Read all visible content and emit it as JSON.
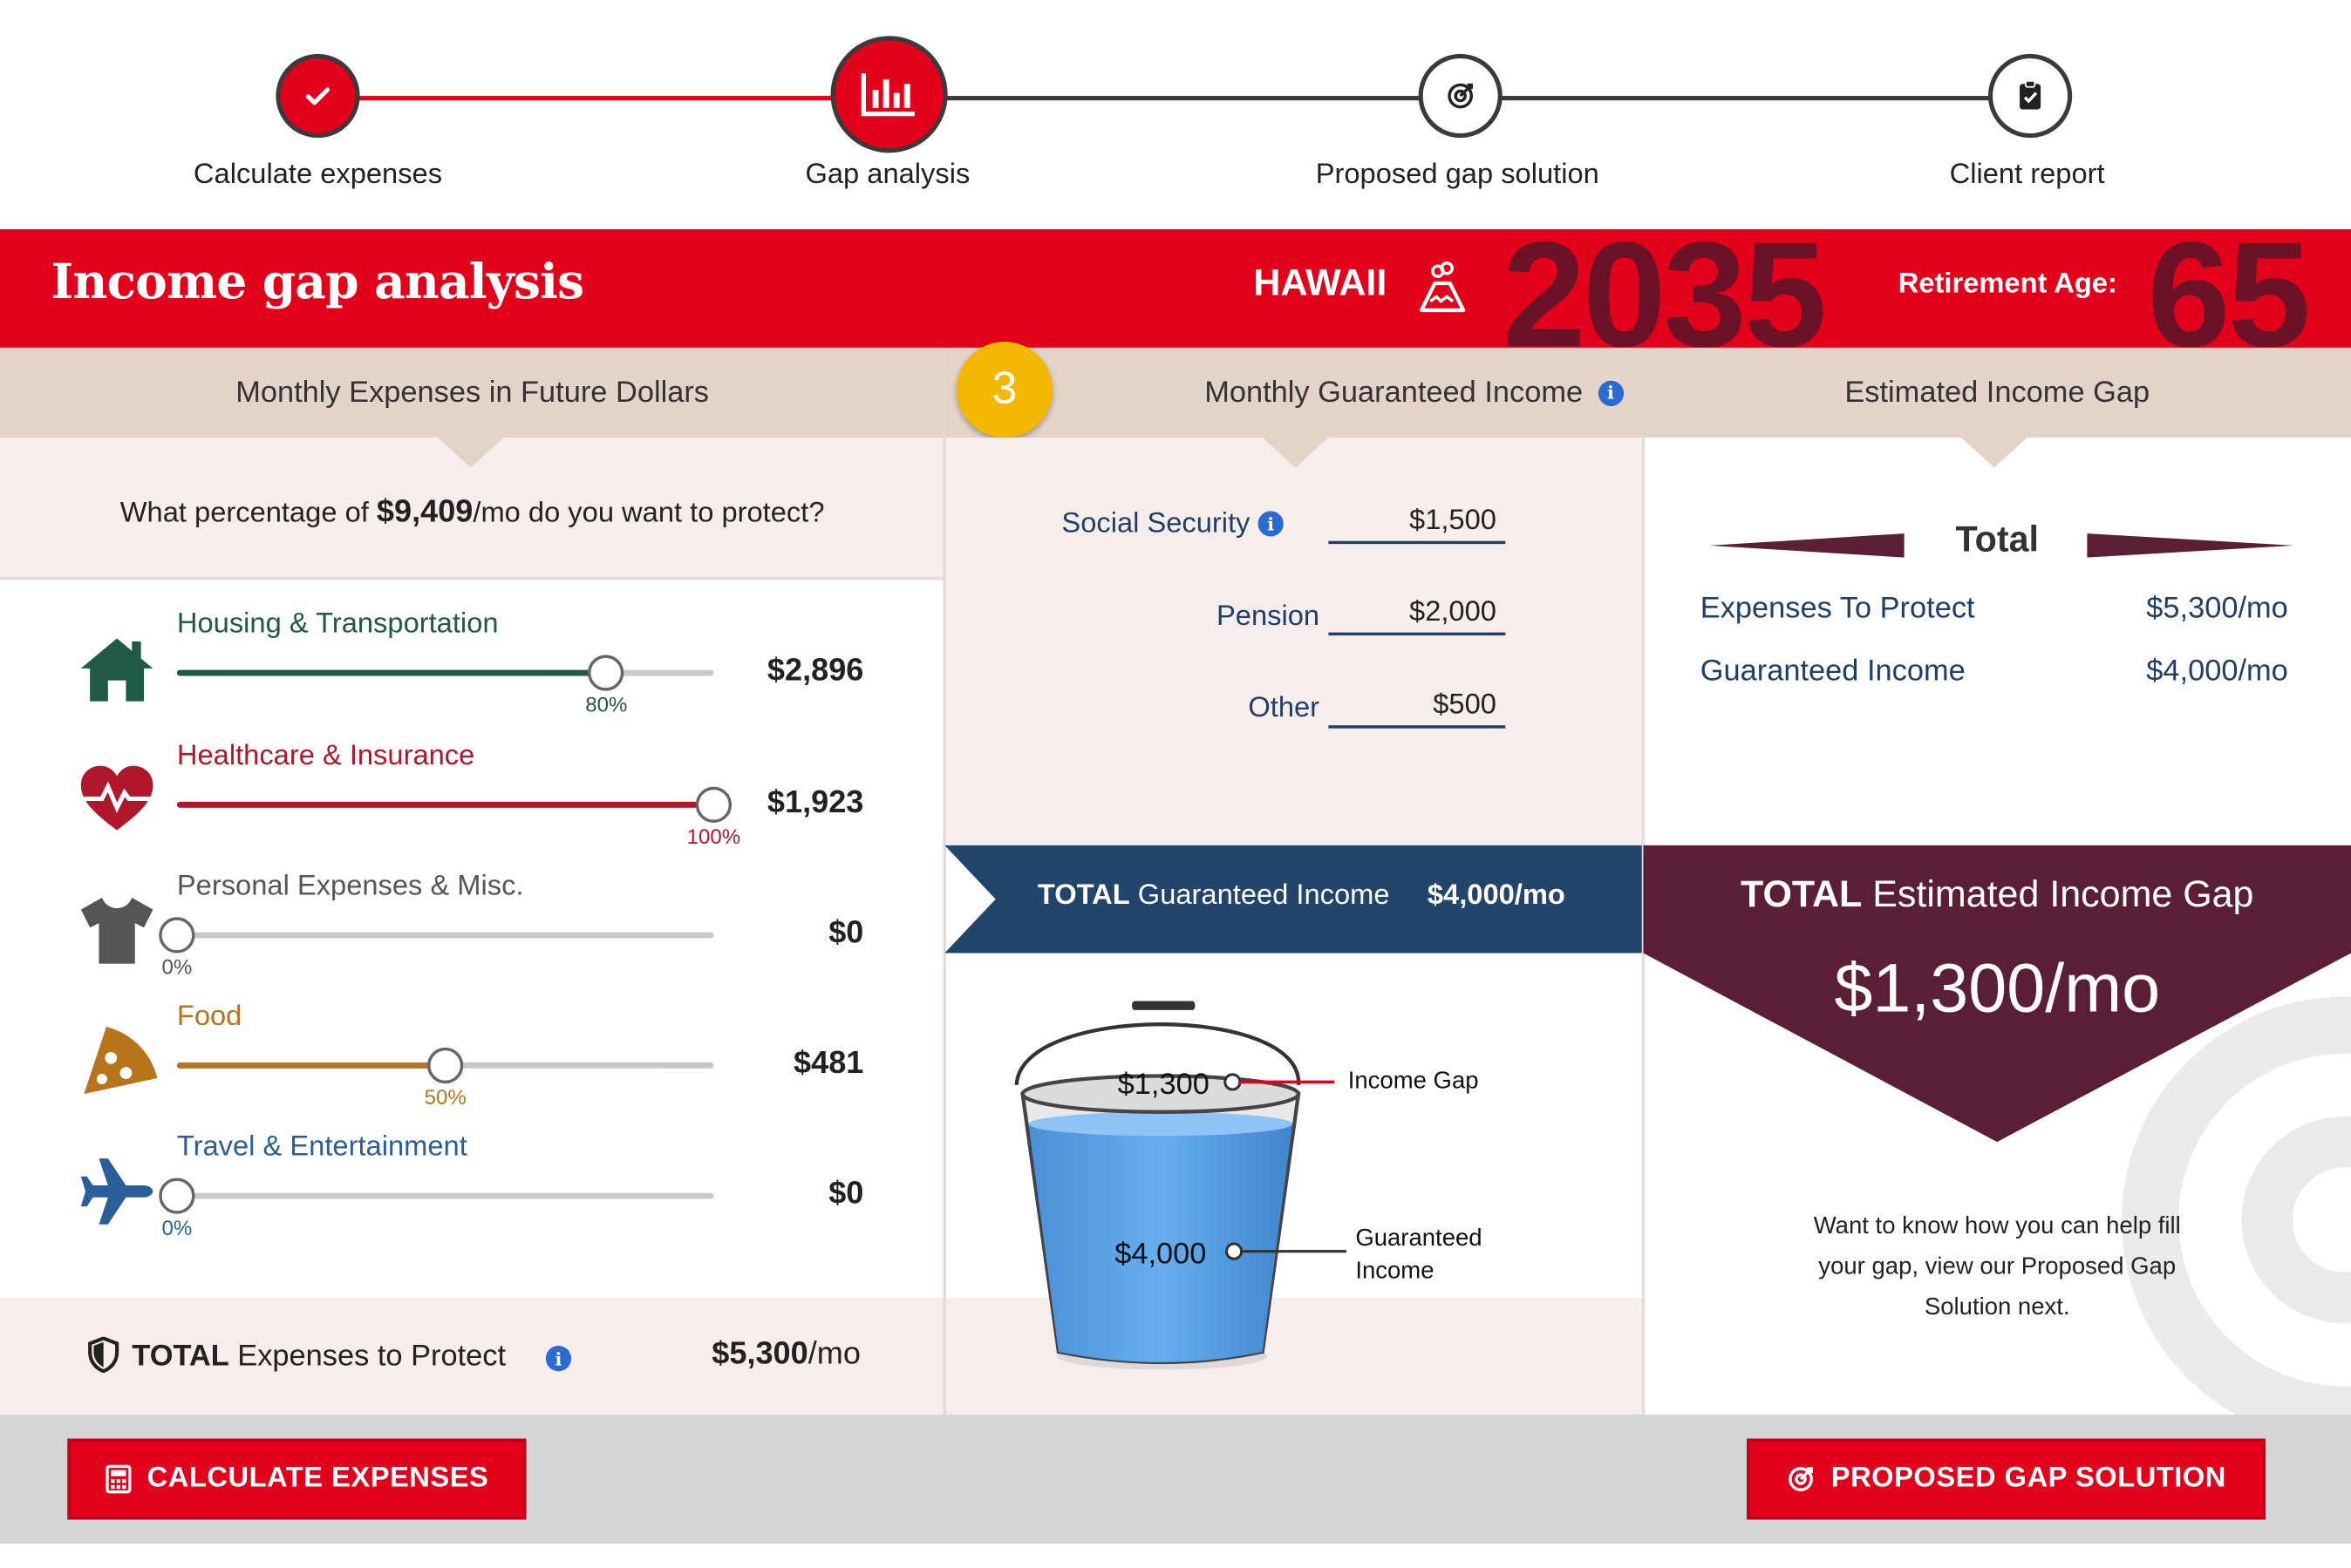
{
  "stepper": {
    "steps": [
      {
        "label": "Calculate expenses",
        "state": "complete",
        "icon": "check-icon"
      },
      {
        "label": "Gap analysis",
        "state": "active",
        "icon": "bar-chart-icon"
      },
      {
        "label": "Proposed gap solution",
        "state": "pending",
        "icon": "target-icon"
      },
      {
        "label": "Client report",
        "state": "pending",
        "icon": "clipboard-icon"
      }
    ]
  },
  "header": {
    "title": "Income gap analysis",
    "state": "HAWAII",
    "state_icon": "volcano-icon",
    "year": "2035",
    "retirement_age_label": "Retirement Age:",
    "retirement_age": "65"
  },
  "columns": {
    "expenses": "Monthly Expenses in Future Dollars",
    "income": "Monthly Guaranteed Income",
    "gap": "Estimated Income Gap",
    "step_badge": "3"
  },
  "expenses": {
    "question_prefix": "What percentage of ",
    "question_amount": "$9,409",
    "question_suffix": "/mo do you want to protect?",
    "items": [
      {
        "label": "Housing & Transportation",
        "percent": 80,
        "percent_label": "80%",
        "amount": "$2,896",
        "color": "#1e5a44",
        "icon": "house-icon"
      },
      {
        "label": "Healthcare & Insurance",
        "percent": 100,
        "percent_label": "100%",
        "amount": "$1,923",
        "color": "#b0172a",
        "icon": "heart-pulse-icon"
      },
      {
        "label": "Personal Expenses & Misc.",
        "percent": 0,
        "percent_label": "0%",
        "amount": "$0",
        "color": "#555555",
        "icon": "shirt-icon"
      },
      {
        "label": "Food",
        "percent": 50,
        "percent_label": "50%",
        "amount": "$481",
        "color": "#b8741a",
        "icon": "pizza-icon"
      },
      {
        "label": "Travel & Entertainment",
        "percent": 0,
        "percent_label": "0%",
        "amount": "$0",
        "color": "#2a5e9a",
        "icon": "airplane-icon"
      }
    ],
    "total_label_bold": "TOTAL",
    "total_label": " Expenses to Protect",
    "total_amount": "$5,300",
    "total_unit": "/mo"
  },
  "income": {
    "fields": [
      {
        "label": "Social Security",
        "value": "$1,500",
        "has_info": true
      },
      {
        "label": "Pension",
        "value": "$2,000",
        "has_info": false
      },
      {
        "label": "Other",
        "value": "$500",
        "has_info": false
      }
    ],
    "total_bold": "TOTAL",
    "total_label": " Guaranteed Income",
    "total_value": "$4,000/mo",
    "bucket_gap_value": "$1,300",
    "bucket_gap_label": "Income Gap",
    "bucket_income_value": "$4,000",
    "bucket_income_label_1": "Guaranteed",
    "bucket_income_label_2": "Income"
  },
  "gap": {
    "total_heading": "Total",
    "rows": [
      {
        "label": "Expenses To Protect",
        "value": "$5,300/mo"
      },
      {
        "label": "Guaranteed Income",
        "value": "$4,000/mo"
      }
    ],
    "banner_bold": "TOTAL",
    "banner_label": " Estimated Income Gap",
    "banner_value": "$1,300/mo",
    "note_1": "Want to know how you can help fill",
    "note_2": "your gap, view our Proposed Gap",
    "note_3": "Solution next."
  },
  "buttons": {
    "calculate": "CALCULATE EXPENSES",
    "proposed": "PROPOSED GAP SOLUTION"
  },
  "colors": {
    "brand_red": "#e2001a",
    "navy": "#22466b",
    "maroon": "#5a1f36",
    "beige": "#e4d3c8"
  }
}
